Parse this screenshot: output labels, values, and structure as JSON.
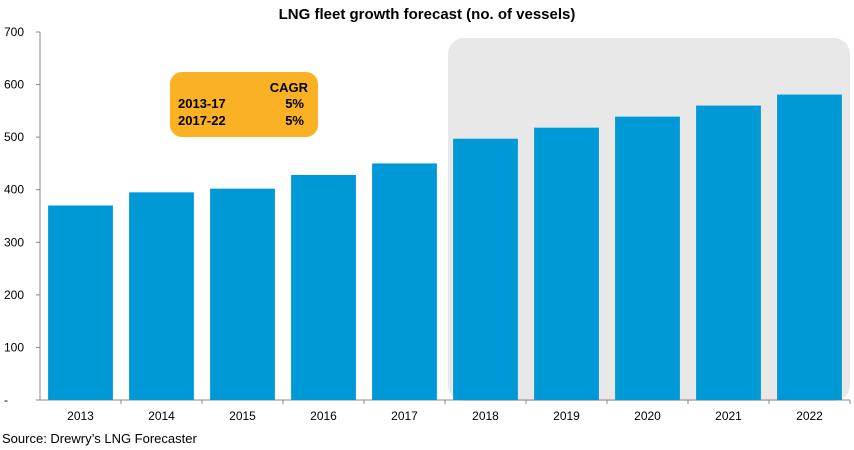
{
  "chart_data": {
    "type": "bar",
    "title": "LNG fleet growth forecast (no. of vessels)",
    "categories": [
      "2013",
      "2014",
      "2015",
      "2016",
      "2017",
      "2018",
      "2019",
      "2020",
      "2021",
      "2022"
    ],
    "values": [
      370,
      395,
      402,
      428,
      450,
      497,
      518,
      539,
      560,
      581
    ],
    "ylim": [
      0,
      700
    ],
    "yticks": [
      "-",
      "100",
      "200",
      "300",
      "400",
      "500",
      "600",
      "700"
    ],
    "xlabel": "",
    "ylabel": "",
    "grid": false,
    "forecast_shaded_from": "2018",
    "bar_color": "#0099d8",
    "shade_color": "#e8e8e8",
    "annotation": {
      "header": "CAGR",
      "rows": [
        {
          "period": "2013-17",
          "value": "5%"
        },
        {
          "period": "2017-22",
          "value": "5%"
        }
      ],
      "color": "#fbb124"
    }
  },
  "source": "Source: Drewry’s LNG Forecaster"
}
